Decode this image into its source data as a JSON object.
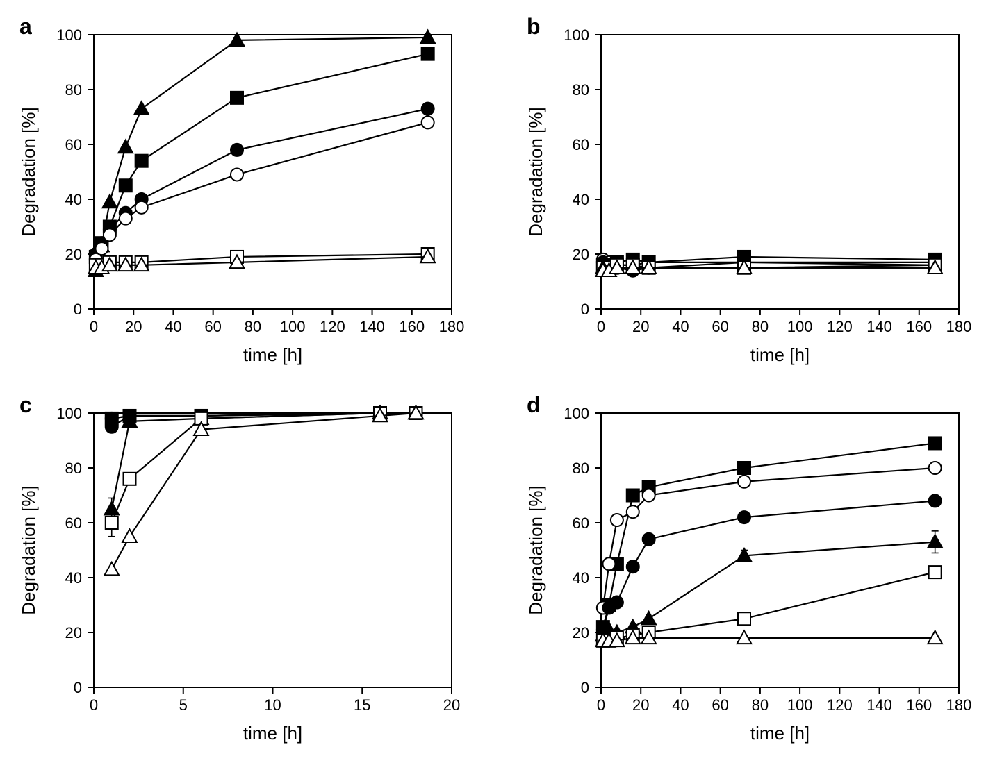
{
  "figure": {
    "layout": "2x2",
    "background_color": "#ffffff",
    "panel_label_fontsize": 32,
    "panel_label_fontweight": "bold",
    "axis_color": "#000000",
    "line_color": "#000000",
    "line_width": 2.2,
    "marker_size": 9,
    "tick_fontsize": 22,
    "label_fontsize": 26,
    "tick_length": 9,
    "panels": {
      "a": {
        "label": "a",
        "xlabel": "time [h]",
        "ylabel": "Degradation [%]",
        "xlim": [
          0,
          180
        ],
        "ylim": [
          0,
          100
        ],
        "xticks": [
          0,
          20,
          40,
          60,
          80,
          100,
          120,
          140,
          160,
          180
        ],
        "yticks": [
          0,
          20,
          40,
          60,
          80,
          100
        ],
        "series": [
          {
            "marker": "triangle-filled",
            "x": [
              1,
              4,
              8,
              16,
              24,
              72,
              168
            ],
            "y": [
              14,
              23,
              39,
              59,
              73,
              98,
              99
            ]
          },
          {
            "marker": "square-filled",
            "x": [
              1,
              4,
              8,
              16,
              24,
              72,
              168
            ],
            "y": [
              19,
              24,
              30,
              45,
              54,
              77,
              93
            ]
          },
          {
            "marker": "circle-filled",
            "x": [
              1,
              4,
              8,
              16,
              24,
              72,
              168
            ],
            "y": [
              20,
              24,
              29,
              35,
              40,
              58,
              73
            ]
          },
          {
            "marker": "circle-open",
            "x": [
              1,
              4,
              8,
              16,
              24,
              72,
              168
            ],
            "y": [
              18,
              22,
              27,
              33,
              37,
              49,
              68
            ]
          },
          {
            "marker": "square-open",
            "x": [
              1,
              4,
              8,
              16,
              24,
              72,
              168
            ],
            "y": [
              16,
              16,
              17,
              17,
              17,
              19,
              20
            ]
          },
          {
            "marker": "triangle-open",
            "x": [
              1,
              4,
              8,
              16,
              24,
              72,
              168
            ],
            "y": [
              15,
              15,
              16,
              16,
              16,
              17,
              19
            ]
          }
        ]
      },
      "b": {
        "label": "b",
        "xlabel": "time [h]",
        "ylabel": "Degradation [%]",
        "xlim": [
          0,
          180
        ],
        "ylim": [
          0,
          100
        ],
        "xticks": [
          0,
          20,
          40,
          60,
          80,
          100,
          120,
          140,
          160,
          180
        ],
        "yticks": [
          0,
          20,
          40,
          60,
          80,
          100
        ],
        "series": [
          {
            "marker": "circle-open",
            "x": [
              1,
              4,
              8,
              16,
              24,
              72,
              168
            ],
            "y": [
              18,
              17,
              16,
              16,
              17,
              17,
              16
            ]
          },
          {
            "marker": "circle-filled",
            "x": [
              1,
              4,
              8,
              16,
              24,
              72,
              168
            ],
            "y": [
              17,
              16,
              15,
              14,
              15,
              17,
              17
            ]
          },
          {
            "marker": "square-filled",
            "x": [
              1,
              4,
              8,
              16,
              24,
              72,
              168
            ],
            "y": [
              16,
              16,
              17,
              18,
              17,
              19,
              18
            ]
          },
          {
            "marker": "square-open",
            "x": [
              1,
              4,
              8,
              16,
              24,
              72,
              168
            ],
            "y": [
              15,
              15,
              16,
              16,
              15,
              15,
              16
            ]
          },
          {
            "marker": "triangle-filled",
            "x": [
              1,
              4,
              8,
              16,
              24,
              72,
              168
            ],
            "y": [
              15,
              14,
              15,
              15,
              15,
              15,
              15
            ]
          },
          {
            "marker": "triangle-open",
            "x": [
              1,
              4,
              8,
              16,
              24,
              72,
              168
            ],
            "y": [
              14,
              14,
              15,
              15,
              15,
              15,
              15
            ]
          }
        ]
      },
      "c": {
        "label": "c",
        "xlabel": "time [h]",
        "ylabel": "Degradation [%]",
        "xlim": [
          0,
          20
        ],
        "ylim": [
          0,
          100
        ],
        "xticks": [
          0,
          5,
          10,
          15,
          20
        ],
        "yticks": [
          0,
          20,
          40,
          60,
          80,
          100
        ],
        "series": [
          {
            "marker": "circle-open",
            "x": [
              1,
              2,
              6,
              16,
              18
            ],
            "y": [
              98,
              99,
              99,
              100,
              100
            ]
          },
          {
            "marker": "square-filled",
            "x": [
              1,
              2,
              6,
              16,
              18
            ],
            "y": [
              98,
              99,
              99,
              100,
              100
            ]
          },
          {
            "marker": "circle-filled",
            "x": [
              1,
              2,
              6,
              16,
              18
            ],
            "y": [
              95,
              99,
              99,
              100,
              100
            ]
          },
          {
            "marker": "triangle-filled",
            "x": [
              1,
              2,
              6,
              16,
              18
            ],
            "y": [
              65,
              97,
              98,
              100,
              100
            ],
            "err": [
              4,
              0,
              0,
              0,
              0
            ]
          },
          {
            "marker": "square-open",
            "x": [
              1,
              2,
              6,
              16,
              18
            ],
            "y": [
              60,
              76,
              98,
              100,
              100
            ],
            "err": [
              5,
              0,
              0,
              0,
              0
            ]
          },
          {
            "marker": "triangle-open",
            "x": [
              1,
              2,
              6,
              16,
              18
            ],
            "y": [
              43,
              55,
              94,
              99,
              100
            ]
          }
        ]
      },
      "d": {
        "label": "d",
        "xlabel": "time [h]",
        "ylabel": "Degradation [%]",
        "xlim": [
          0,
          180
        ],
        "ylim": [
          0,
          100
        ],
        "xticks": [
          0,
          20,
          40,
          60,
          80,
          100,
          120,
          140,
          160,
          180
        ],
        "yticks": [
          0,
          20,
          40,
          60,
          80,
          100
        ],
        "series": [
          {
            "marker": "square-filled",
            "x": [
              1,
              4,
              8,
              16,
              24,
              72,
              168
            ],
            "y": [
              22,
              30,
              45,
              70,
              73,
              80,
              89
            ]
          },
          {
            "marker": "circle-open",
            "x": [
              1,
              4,
              8,
              16,
              24,
              72,
              168
            ],
            "y": [
              29,
              45,
              61,
              64,
              70,
              75,
              80
            ]
          },
          {
            "marker": "circle-filled",
            "x": [
              1,
              4,
              8,
              16,
              24,
              72,
              168
            ],
            "y": [
              21,
              29,
              31,
              44,
              54,
              62,
              68
            ],
            "err": [
              0,
              0,
              0,
              0,
              0,
              2,
              2
            ]
          },
          {
            "marker": "triangle-filled",
            "x": [
              1,
              4,
              8,
              16,
              24,
              72,
              168
            ],
            "y": [
              19,
              21,
              20,
              22,
              25,
              48,
              53
            ],
            "err": [
              0,
              0,
              0,
              0,
              0,
              2,
              4
            ]
          },
          {
            "marker": "square-open",
            "x": [
              1,
              4,
              8,
              16,
              24,
              72,
              168
            ],
            "y": [
              17,
              17,
              18,
              19,
              20,
              25,
              42
            ]
          },
          {
            "marker": "triangle-open",
            "x": [
              1,
              4,
              8,
              16,
              24,
              72,
              168
            ],
            "y": [
              17,
              17,
              17,
              18,
              18,
              18,
              18
            ]
          }
        ]
      }
    }
  }
}
